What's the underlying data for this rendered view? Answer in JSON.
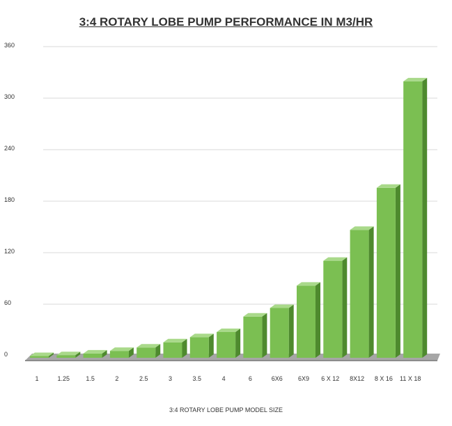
{
  "chart_data": {
    "type": "bar",
    "title": "3:4 ROTARY LOBE PUMP PERFORMANCE IN M3/HR",
    "xlabel": "3:4 ROTARY LOBE PUMP MODEL SIZE",
    "ylabel": "",
    "categories": [
      "1",
      "1.25",
      "1.5",
      "2",
      "2.5",
      "3",
      "3.5",
      "4",
      "6",
      "6X6",
      "6X9",
      "6 X 12",
      "8X12",
      "8 X 16",
      "11 X 18"
    ],
    "values": [
      2,
      3,
      5,
      8,
      12,
      18,
      24,
      30,
      48,
      58,
      84,
      113,
      149,
      198,
      322
    ],
    "ylim": [
      0,
      360
    ],
    "yticks": [
      0,
      60,
      120,
      180,
      240,
      300,
      360
    ],
    "grid": true,
    "colors": {
      "bar_front": "#7bbf52",
      "bar_side": "#4e8a2e",
      "bar_top": "#a9d98a",
      "floor": "#a6a6a6",
      "gridline": "#d9d9d9",
      "text": "#333333"
    }
  }
}
